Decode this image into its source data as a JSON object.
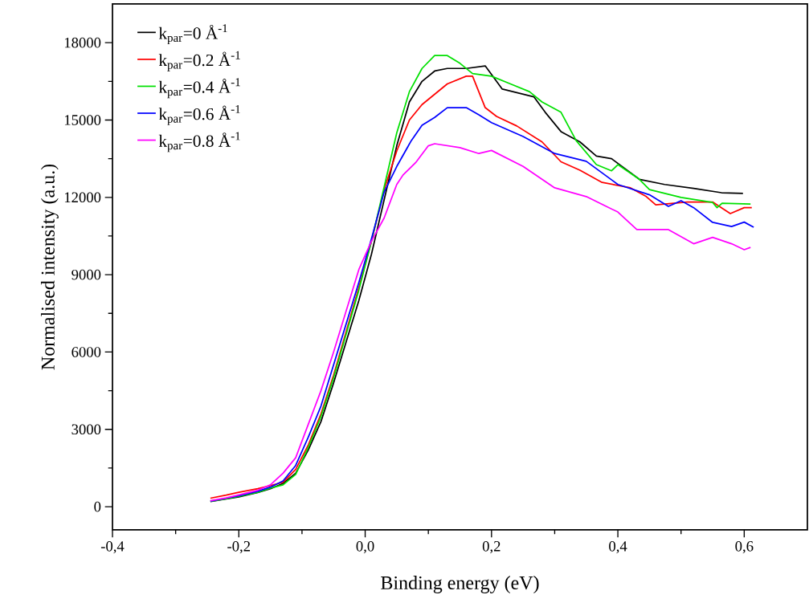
{
  "chart_data": {
    "type": "line",
    "xlabel": "Binding energy (eV)",
    "ylabel": "Normalised intensity (a.u.)",
    "xlim": [
      -0.4,
      0.7
    ],
    "ylim": [
      -900,
      19500
    ],
    "xticks": [
      {
        "value": -0.4,
        "label": "-0,4"
      },
      {
        "value": -0.2,
        "label": "-0,2"
      },
      {
        "value": 0.0,
        "label": "0,0"
      },
      {
        "value": 0.2,
        "label": "0,2"
      },
      {
        "value": 0.4,
        "label": "0,4"
      },
      {
        "value": 0.6,
        "label": "0,6"
      }
    ],
    "yticks": [
      0,
      3000,
      6000,
      9000,
      12000,
      15000,
      18000
    ],
    "legend": "top left",
    "series": [
      {
        "name": "k$_{par}$=0 Å$^{-1}$",
        "color": "#000000",
        "x": [
          -0.245,
          -0.22,
          -0.2,
          -0.17,
          -0.15,
          -0.13,
          -0.11,
          -0.09,
          -0.07,
          -0.05,
          -0.03,
          -0.01,
          0.01,
          0.03,
          0.05,
          0.07,
          0.09,
          0.11,
          0.13,
          0.16,
          0.19,
          0.217,
          0.267,
          0.285,
          0.31,
          0.34,
          0.366,
          0.39,
          0.434,
          0.474,
          0.52,
          0.564,
          0.598
        ],
        "values": [
          200,
          300,
          380,
          550,
          700,
          900,
          1300,
          2200,
          3300,
          4800,
          6400,
          8000,
          9800,
          11900,
          14000,
          15700,
          16500,
          16900,
          17000,
          17000,
          17100,
          16200,
          15900,
          15300,
          14550,
          14150,
          13600,
          13500,
          12700,
          12500,
          12350,
          12180,
          12150
        ]
      },
      {
        "name": "k$_{par}$=0.2 Å$^{-1}$",
        "color": "#ff0000",
        "x": [
          -0.245,
          -0.22,
          -0.2,
          -0.17,
          -0.15,
          -0.13,
          -0.11,
          -0.09,
          -0.07,
          -0.05,
          -0.03,
          -0.01,
          0.01,
          0.03,
          0.05,
          0.07,
          0.09,
          0.11,
          0.13,
          0.16,
          0.17,
          0.19,
          0.208,
          0.24,
          0.28,
          0.31,
          0.34,
          0.375,
          0.42,
          0.445,
          0.46,
          0.51,
          0.55,
          0.578,
          0.6,
          0.612
        ],
        "values": [
          330,
          450,
          560,
          700,
          820,
          950,
          1450,
          2400,
          3600,
          5100,
          6800,
          8500,
          10300,
          12300,
          13800,
          15000,
          15600,
          16000,
          16400,
          16700,
          16700,
          15480,
          15140,
          14770,
          14150,
          13380,
          13050,
          12580,
          12370,
          12030,
          11710,
          11820,
          11820,
          11370,
          11600,
          11600
        ]
      },
      {
        "name": "k$_{par}$=0.4 Å$^{-1}$",
        "color": "#00e000",
        "x": [
          -0.245,
          -0.22,
          -0.2,
          -0.17,
          -0.15,
          -0.13,
          -0.11,
          -0.09,
          -0.07,
          -0.05,
          -0.03,
          -0.01,
          0.01,
          0.03,
          0.05,
          0.07,
          0.09,
          0.11,
          0.13,
          0.15,
          0.17,
          0.2,
          0.23,
          0.26,
          0.28,
          0.31,
          0.334,
          0.366,
          0.39,
          0.4,
          0.434,
          0.45,
          0.5,
          0.55,
          0.557,
          0.565,
          0.61
        ],
        "values": [
          210,
          310,
          400,
          560,
          720,
          850,
          1250,
          2300,
          3500,
          5000,
          6700,
          8400,
          10300,
          12400,
          14500,
          16100,
          17000,
          17500,
          17500,
          17200,
          16800,
          16700,
          16400,
          16100,
          15700,
          15300,
          14200,
          13270,
          13030,
          13270,
          12700,
          12300,
          12000,
          11800,
          11600,
          11770,
          11740
        ]
      },
      {
        "name": "k$_{par}$=0.6 Å$^{-1}$",
        "color": "#0000ff",
        "x": [
          -0.245,
          -0.22,
          -0.2,
          -0.17,
          -0.15,
          -0.13,
          -0.11,
          -0.09,
          -0.07,
          -0.05,
          -0.03,
          -0.01,
          0.01,
          0.03,
          0.05,
          0.073,
          0.09,
          0.11,
          0.13,
          0.16,
          0.18,
          0.2,
          0.25,
          0.3,
          0.35,
          0.4,
          0.45,
          0.48,
          0.5,
          0.52,
          0.55,
          0.58,
          0.6,
          0.615
        ],
        "values": [
          220,
          330,
          430,
          600,
          760,
          1000,
          1600,
          2700,
          3900,
          5500,
          7100,
          8700,
          10400,
          12200,
          13200,
          14200,
          14800,
          15100,
          15480,
          15480,
          15200,
          14900,
          14360,
          13700,
          13400,
          12500,
          12100,
          11650,
          11870,
          11600,
          11030,
          10870,
          11040,
          10840
        ]
      },
      {
        "name": "k$_{par}$=0.8 Å$^{-1}$",
        "color": "#ff00ff",
        "x": [
          -0.245,
          -0.22,
          -0.2,
          -0.17,
          -0.15,
          -0.13,
          -0.11,
          -0.09,
          -0.07,
          -0.05,
          -0.03,
          -0.01,
          0.01,
          0.03,
          0.05,
          0.06,
          0.08,
          0.1,
          0.11,
          0.15,
          0.18,
          0.2,
          0.25,
          0.3,
          0.35,
          0.4,
          0.43,
          0.48,
          0.52,
          0.55,
          0.58,
          0.6,
          0.61
        ],
        "values": [
          230,
          340,
          460,
          640,
          850,
          1300,
          1900,
          3200,
          4500,
          6000,
          7600,
          9200,
          10300,
          11200,
          12500,
          12870,
          13350,
          14000,
          14080,
          13930,
          13700,
          13820,
          13200,
          12370,
          12030,
          11430,
          10750,
          10750,
          10200,
          10450,
          10200,
          9970,
          10060
        ]
      }
    ]
  }
}
